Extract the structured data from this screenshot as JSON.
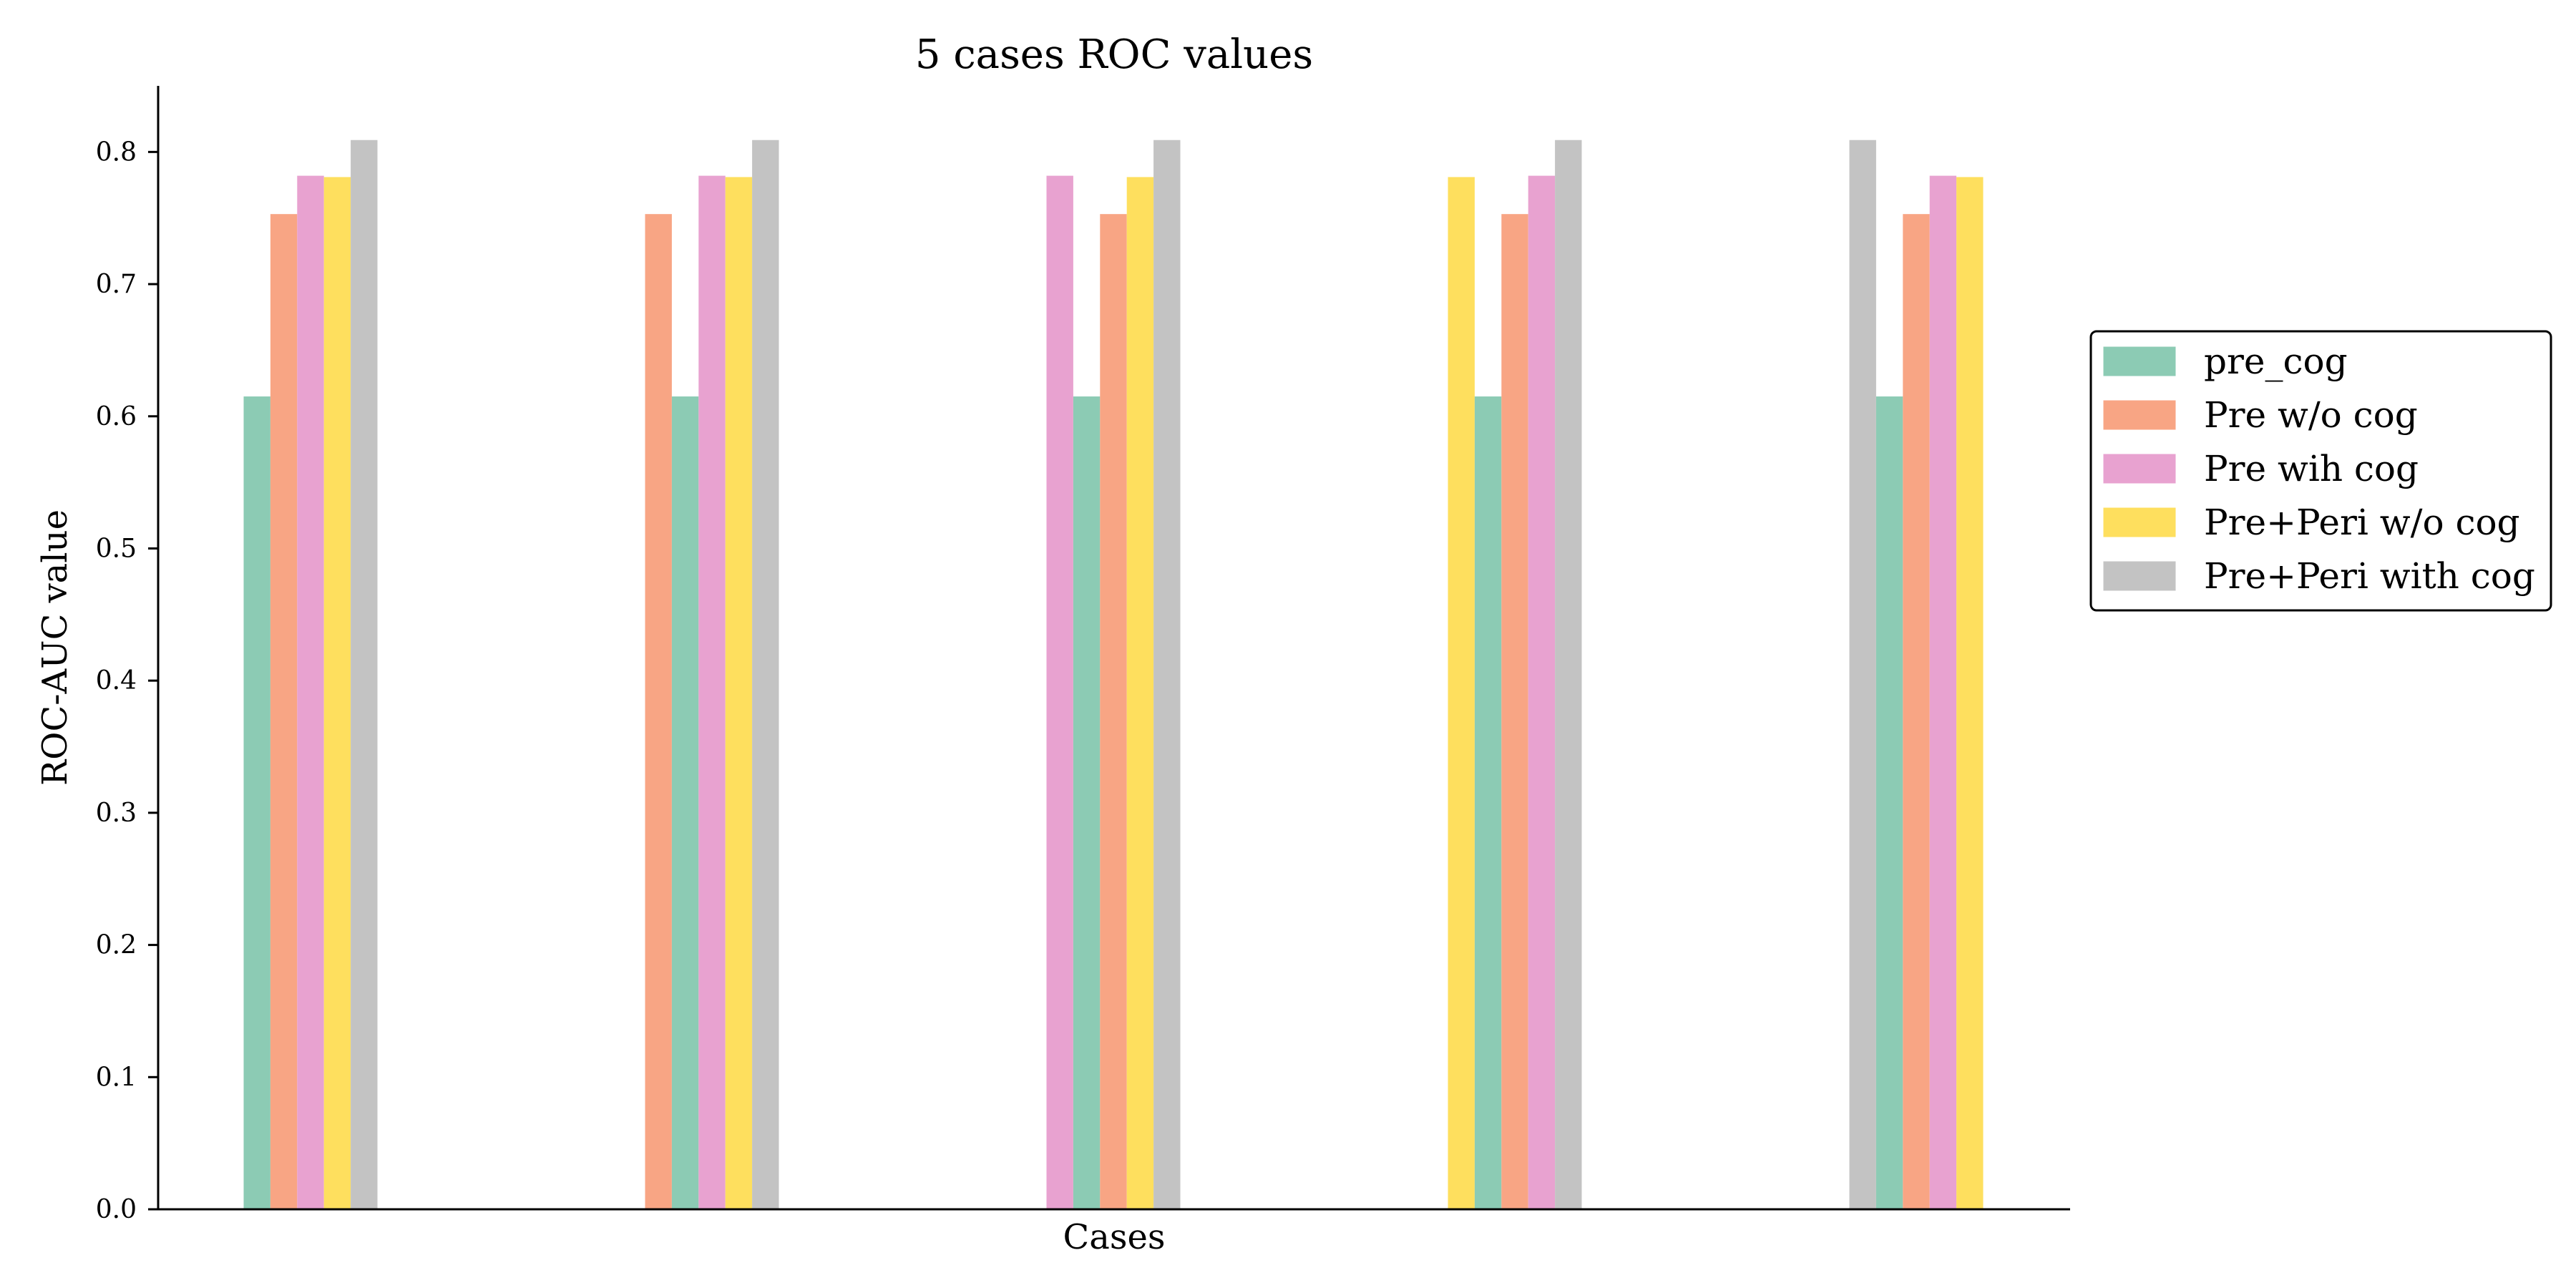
{
  "chart_data": {
    "type": "bar",
    "title": "5 cases ROC values",
    "xlabel": "Cases",
    "ylabel": "ROC-AUC value",
    "ylim": [
      0,
      0.85
    ],
    "yticks": [
      "0.0",
      "0.1",
      "0.2",
      "0.3",
      "0.4",
      "0.5",
      "0.6",
      "0.7",
      "0.8"
    ],
    "grid": false,
    "legend_position": "right, outside plot area",
    "groups": [
      {
        "bars": [
          {
            "series": "pre_cog",
            "value": 0.615
          },
          {
            "series": "Pre w/o cog",
            "value": 0.753
          },
          {
            "series": "Pre wih cog",
            "value": 0.782
          },
          {
            "series": "Pre+Peri w/o cog",
            "value": 0.781
          },
          {
            "series": "Pre+Peri with cog",
            "value": 0.809
          }
        ]
      },
      {
        "bars": [
          {
            "series": "Pre w/o cog",
            "value": 0.753
          },
          {
            "series": "pre_cog",
            "value": 0.615
          },
          {
            "series": "Pre wih cog",
            "value": 0.782
          },
          {
            "series": "Pre+Peri w/o cog",
            "value": 0.781
          },
          {
            "series": "Pre+Peri with cog",
            "value": 0.809
          }
        ]
      },
      {
        "bars": [
          {
            "series": "Pre wih cog",
            "value": 0.782
          },
          {
            "series": "pre_cog",
            "value": 0.615
          },
          {
            "series": "Pre w/o cog",
            "value": 0.753
          },
          {
            "series": "Pre+Peri w/o cog",
            "value": 0.781
          },
          {
            "series": "Pre+Peri with cog",
            "value": 0.809
          }
        ]
      },
      {
        "bars": [
          {
            "series": "Pre+Peri w/o cog",
            "value": 0.781
          },
          {
            "series": "pre_cog",
            "value": 0.615
          },
          {
            "series": "Pre w/o cog",
            "value": 0.753
          },
          {
            "series": "Pre wih cog",
            "value": 0.782
          },
          {
            "series": "Pre+Peri with cog",
            "value": 0.809
          }
        ]
      },
      {
        "bars": [
          {
            "series": "Pre+Peri with cog",
            "value": 0.809
          },
          {
            "series": "pre_cog",
            "value": 0.615
          },
          {
            "series": "Pre w/o cog",
            "value": 0.753
          },
          {
            "series": "Pre wih cog",
            "value": 0.782
          },
          {
            "series": "Pre+Peri w/o cog",
            "value": 0.781
          }
        ]
      }
    ],
    "series": [
      {
        "name": "pre_cog",
        "color": "#8ccbb4"
      },
      {
        "name": "Pre w/o cog",
        "color": "#f8a584"
      },
      {
        "name": "Pre wih cog",
        "color": "#e8a2d0"
      },
      {
        "name": "Pre+Peri w/o cog",
        "color": "#fedf5e"
      },
      {
        "name": "Pre+Peri with cog",
        "color": "#c3c3c3"
      }
    ]
  }
}
